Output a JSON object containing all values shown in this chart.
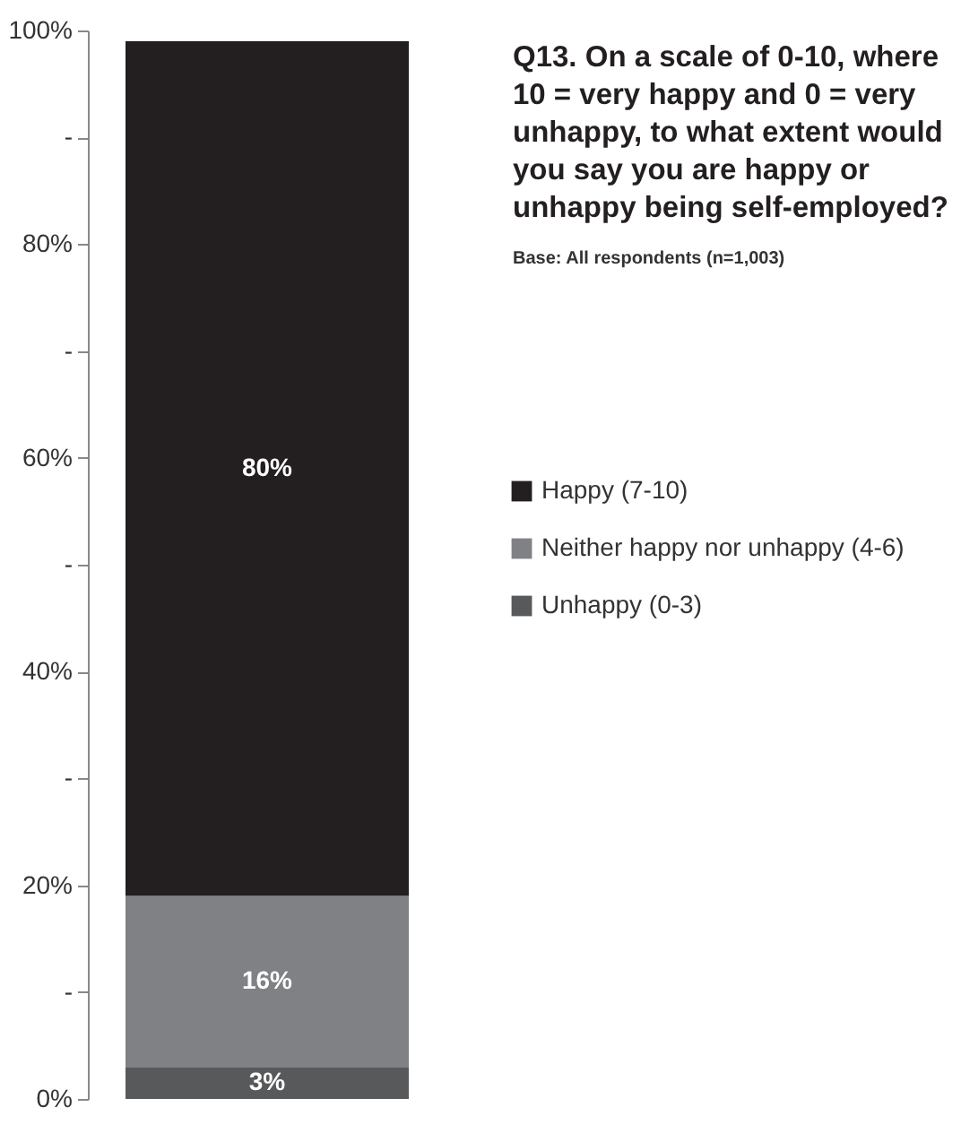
{
  "chart_data": {
    "type": "bar",
    "title": "Q13. On a scale of 0-10, where 10 = very happy and 0 = very unhappy, to what extent would you say you are happy or unhappy being self-employed?",
    "subtitle": "Base: All respondents (n=1,003)",
    "categories": [
      null
    ],
    "stacked": true,
    "series": [
      {
        "name": "Unhappy (0-3)",
        "color": "#58595b",
        "values": [
          3
        ],
        "value_labels": [
          "3%"
        ]
      },
      {
        "name": "Neither happy nor unhappy (4-6)",
        "color": "#808184",
        "values": [
          16
        ],
        "value_labels": [
          "16%"
        ]
      },
      {
        "name": "Happy (7-10)",
        "color": "#231f20",
        "values": [
          80
        ],
        "value_labels": [
          "80%"
        ]
      }
    ],
    "ylim": [
      0,
      100
    ],
    "yticks": [
      {
        "value": 0,
        "label": "0%"
      },
      {
        "value": 10,
        "label": "-"
      },
      {
        "value": 20,
        "label": "20%"
      },
      {
        "value": 30,
        "label": "-"
      },
      {
        "value": 40,
        "label": "40%"
      },
      {
        "value": 50,
        "label": "-"
      },
      {
        "value": 60,
        "label": "60%"
      },
      {
        "value": 70,
        "label": "-"
      },
      {
        "value": 80,
        "label": "80%"
      },
      {
        "value": 90,
        "label": "-"
      },
      {
        "value": 100,
        "label": "100%"
      }
    ],
    "grid": false,
    "legend": "right",
    "tick_labels": "y"
  }
}
